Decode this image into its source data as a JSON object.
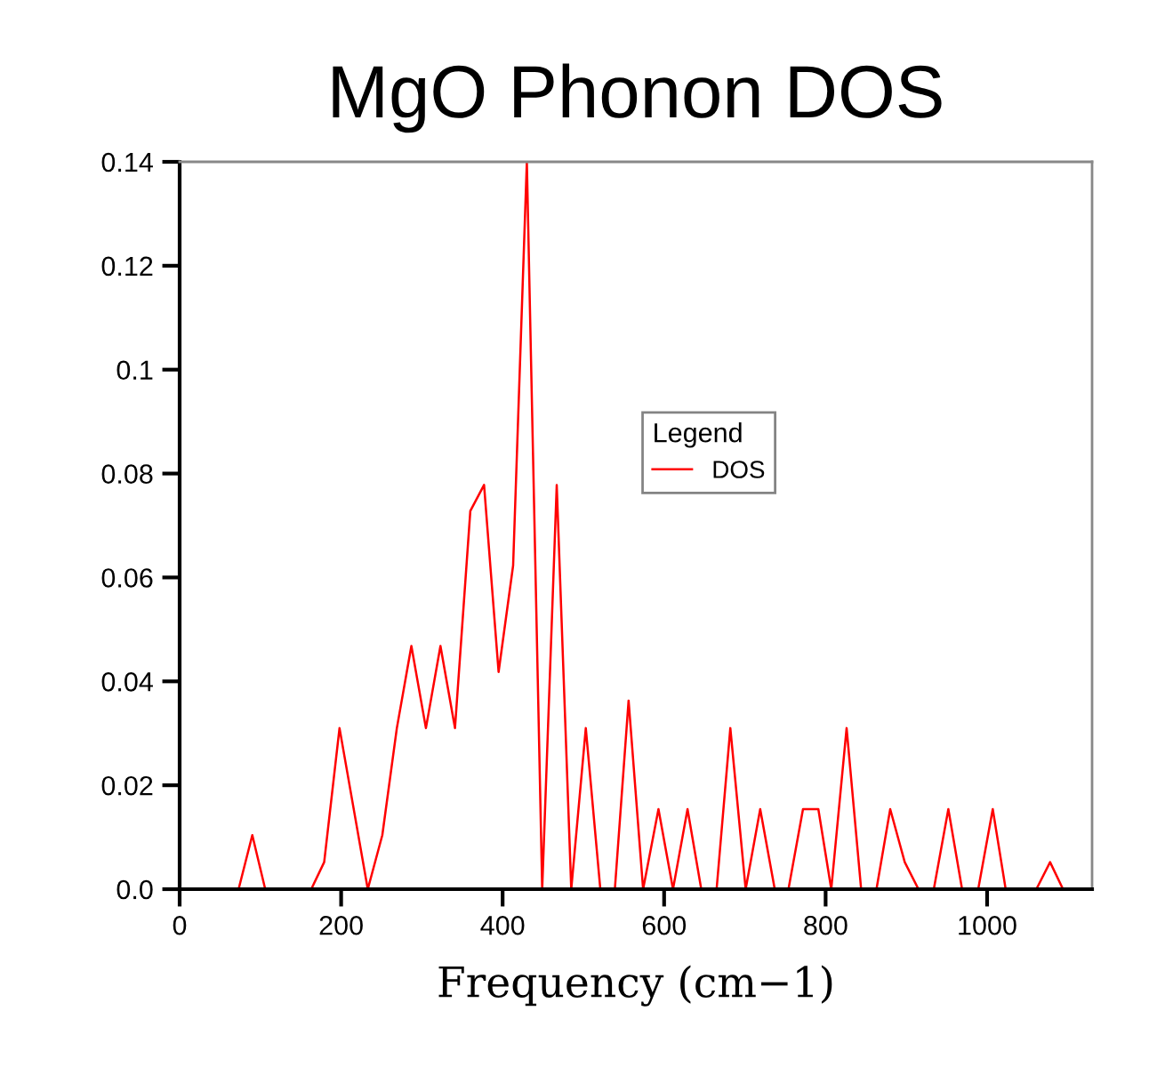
{
  "chart_data": {
    "type": "line",
    "title": "MgO Phonon DOS",
    "xlabel": "Frequency (cm−1)",
    "legend_title": "Legend",
    "legend": "center",
    "grid": false,
    "marker": "none",
    "line_style": "solid",
    "xlim": [
      0,
      1130
    ],
    "xticks": [
      0,
      200,
      400,
      600,
      800,
      1000
    ],
    "ylim": [
      0,
      0.14
    ],
    "yticks": [
      {
        "value": 0,
        "label": "0.0"
      },
      0.02,
      0.04,
      0.06,
      0.08,
      0.1,
      0.12,
      0.14
    ],
    "series": [
      {
        "name": "DOS",
        "color": "#ff0000",
        "x": [
          73,
          90,
          106,
          163,
          179,
          198,
          233,
          251,
          269,
          287,
          305,
          323,
          341,
          360,
          377,
          395,
          413,
          430,
          449,
          467,
          485,
          503,
          521,
          539,
          556,
          574,
          593,
          611,
          629,
          646,
          665,
          682,
          701,
          719,
          737,
          754,
          772,
          791,
          807,
          826,
          844,
          863,
          880,
          898,
          915,
          934,
          952,
          969,
          989,
          1007,
          1023,
          1061,
          1078,
          1094
        ],
        "values": [
          0,
          0.0104,
          0,
          0,
          0.0052,
          0.031,
          0,
          0.0104,
          0.031,
          0.0468,
          0.031,
          0.0468,
          0.031,
          0.0728,
          0.0778,
          0.0418,
          0.0623,
          0.14,
          0,
          0.0778,
          0,
          0.031,
          0,
          0,
          0.0363,
          0,
          0.0154,
          0,
          0.0154,
          0,
          0,
          0.031,
          0,
          0.0154,
          0,
          0,
          0.0154,
          0.0154,
          0,
          0.031,
          0,
          0,
          0.0154,
          0.0052,
          0,
          0,
          0.0154,
          0,
          0,
          0.0154,
          0,
          0,
          0.0052,
          0
        ]
      }
    ]
  }
}
